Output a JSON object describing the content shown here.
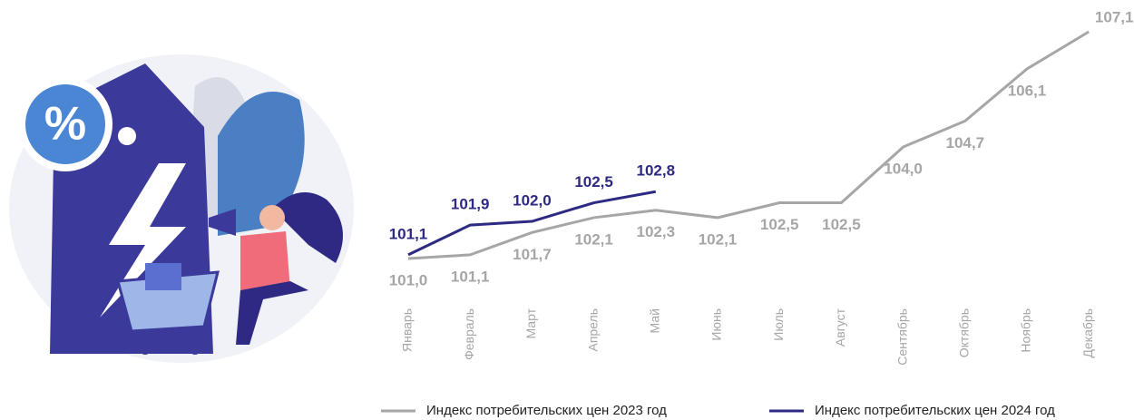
{
  "illustration": {
    "badge": "%"
  },
  "chart_data": {
    "type": "line",
    "categories": [
      "Январь",
      "Февраль",
      "Март",
      "Апрель",
      "Май",
      "Июнь",
      "Июль",
      "Август",
      "Сентябрь",
      "Октябрь",
      "Ноябрь",
      "Декабрь"
    ],
    "series": [
      {
        "name": "Индекс потребительских цен 2023 год",
        "color": "#a6a6a6",
        "values": [
          101.0,
          101.1,
          101.7,
          102.1,
          102.3,
          102.1,
          102.5,
          102.5,
          104.0,
          104.7,
          106.1,
          107.1
        ],
        "value_labels": [
          "101,0",
          "101,1",
          "101,7",
          "102,1",
          "102,3",
          "102,1",
          "102,5",
          "102,5",
          "104,0",
          "104,7",
          "106,1",
          "107,1"
        ]
      },
      {
        "name": "Индекс потребительских цен 2024 год",
        "color": "#2e2a84",
        "values": [
          101.1,
          101.9,
          102.0,
          102.5,
          102.8,
          null,
          null,
          null,
          null,
          null,
          null,
          null
        ],
        "value_labels": [
          "101,1",
          "101,9",
          "102,0",
          "102,5",
          "102,8",
          null,
          null,
          null,
          null,
          null,
          null,
          null
        ]
      }
    ],
    "legend": "bottom"
  }
}
